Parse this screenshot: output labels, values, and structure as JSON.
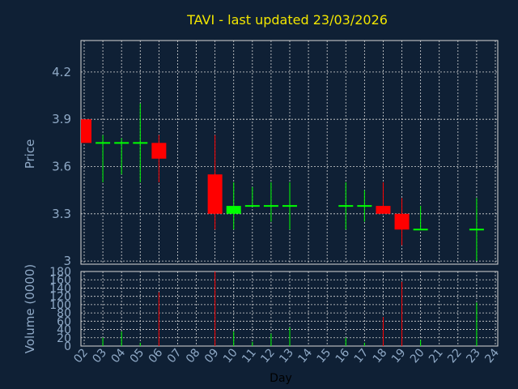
{
  "chart_data": {
    "type": "candlestick",
    "title": "TAVI - last updated 23/03/2026",
    "xlabel": "Day",
    "categories": [
      "02",
      "03",
      "04",
      "05",
      "06",
      "07",
      "08",
      "09",
      "10",
      "11",
      "12",
      "13",
      "14",
      "15",
      "16",
      "17",
      "18",
      "19",
      "20",
      "21",
      "22",
      "23",
      "24"
    ],
    "price_axis": {
      "ylabel": "Price",
      "ticks": [
        "4.2",
        "3.9",
        "3.6",
        "3.3",
        "3"
      ],
      "ylim": [
        2.98,
        4.4
      ]
    },
    "volume_axis": {
      "ylabel": "Volume (0000)",
      "ticks": [
        "180",
        "160",
        "140",
        "120",
        "100",
        "80",
        "60",
        "40",
        "20",
        "0"
      ],
      "ylim": [
        0,
        180
      ]
    },
    "candles": [
      {
        "day": "02",
        "open": 3.9,
        "high": 3.9,
        "low": 3.75,
        "close": 3.75,
        "volume": 0,
        "direction": "down"
      },
      {
        "day": "03",
        "open": 3.75,
        "high": 3.8,
        "low": 3.5,
        "close": 3.75,
        "volume": 20,
        "direction": "up"
      },
      {
        "day": "04",
        "open": 3.75,
        "high": 3.78,
        "low": 3.55,
        "close": 3.75,
        "volume": 35,
        "direction": "up"
      },
      {
        "day": "05",
        "open": 3.75,
        "high": 4.0,
        "low": 3.5,
        "close": 3.75,
        "volume": 8,
        "direction": "up"
      },
      {
        "day": "06",
        "open": 3.75,
        "high": 3.8,
        "low": 3.5,
        "close": 3.65,
        "volume": 130,
        "direction": "down"
      },
      {
        "day": "09",
        "open": 3.55,
        "high": 3.8,
        "low": 3.2,
        "close": 3.3,
        "volume": 180,
        "direction": "down"
      },
      {
        "day": "10",
        "open": 3.3,
        "high": 3.5,
        "low": 3.2,
        "close": 3.35,
        "volume": 35,
        "direction": "up"
      },
      {
        "day": "11",
        "open": 3.35,
        "high": 3.47,
        "low": 3.35,
        "close": 3.35,
        "volume": 10,
        "direction": "up"
      },
      {
        "day": "12",
        "open": 3.35,
        "high": 3.5,
        "low": 3.25,
        "close": 3.35,
        "volume": 30,
        "direction": "up"
      },
      {
        "day": "13",
        "open": 3.35,
        "high": 3.5,
        "low": 3.2,
        "close": 3.35,
        "volume": 45,
        "direction": "up"
      },
      {
        "day": "16",
        "open": 3.35,
        "high": 3.5,
        "low": 3.2,
        "close": 3.35,
        "volume": 20,
        "direction": "up"
      },
      {
        "day": "17",
        "open": 3.35,
        "high": 3.45,
        "low": 3.25,
        "close": 3.35,
        "volume": 8,
        "direction": "up"
      },
      {
        "day": "18",
        "open": 3.35,
        "high": 3.5,
        "low": 3.3,
        "close": 3.3,
        "volume": 70,
        "direction": "down"
      },
      {
        "day": "19",
        "open": 3.3,
        "high": 3.4,
        "low": 3.1,
        "close": 3.2,
        "volume": 155,
        "direction": "down"
      },
      {
        "day": "20",
        "open": 3.2,
        "high": 3.35,
        "low": 3.2,
        "close": 3.2,
        "volume": 15,
        "direction": "up"
      },
      {
        "day": "23",
        "open": 3.2,
        "high": 3.4,
        "low": 3.0,
        "close": 3.2,
        "volume": 105,
        "direction": "up"
      }
    ],
    "grid": true,
    "colors": {
      "background": "#0f2035",
      "up": "#00ff00",
      "down": "#ff0000",
      "grid": "#d8d8d8",
      "axis_text": "#8fa9c6",
      "title": "#f2e600"
    }
  }
}
